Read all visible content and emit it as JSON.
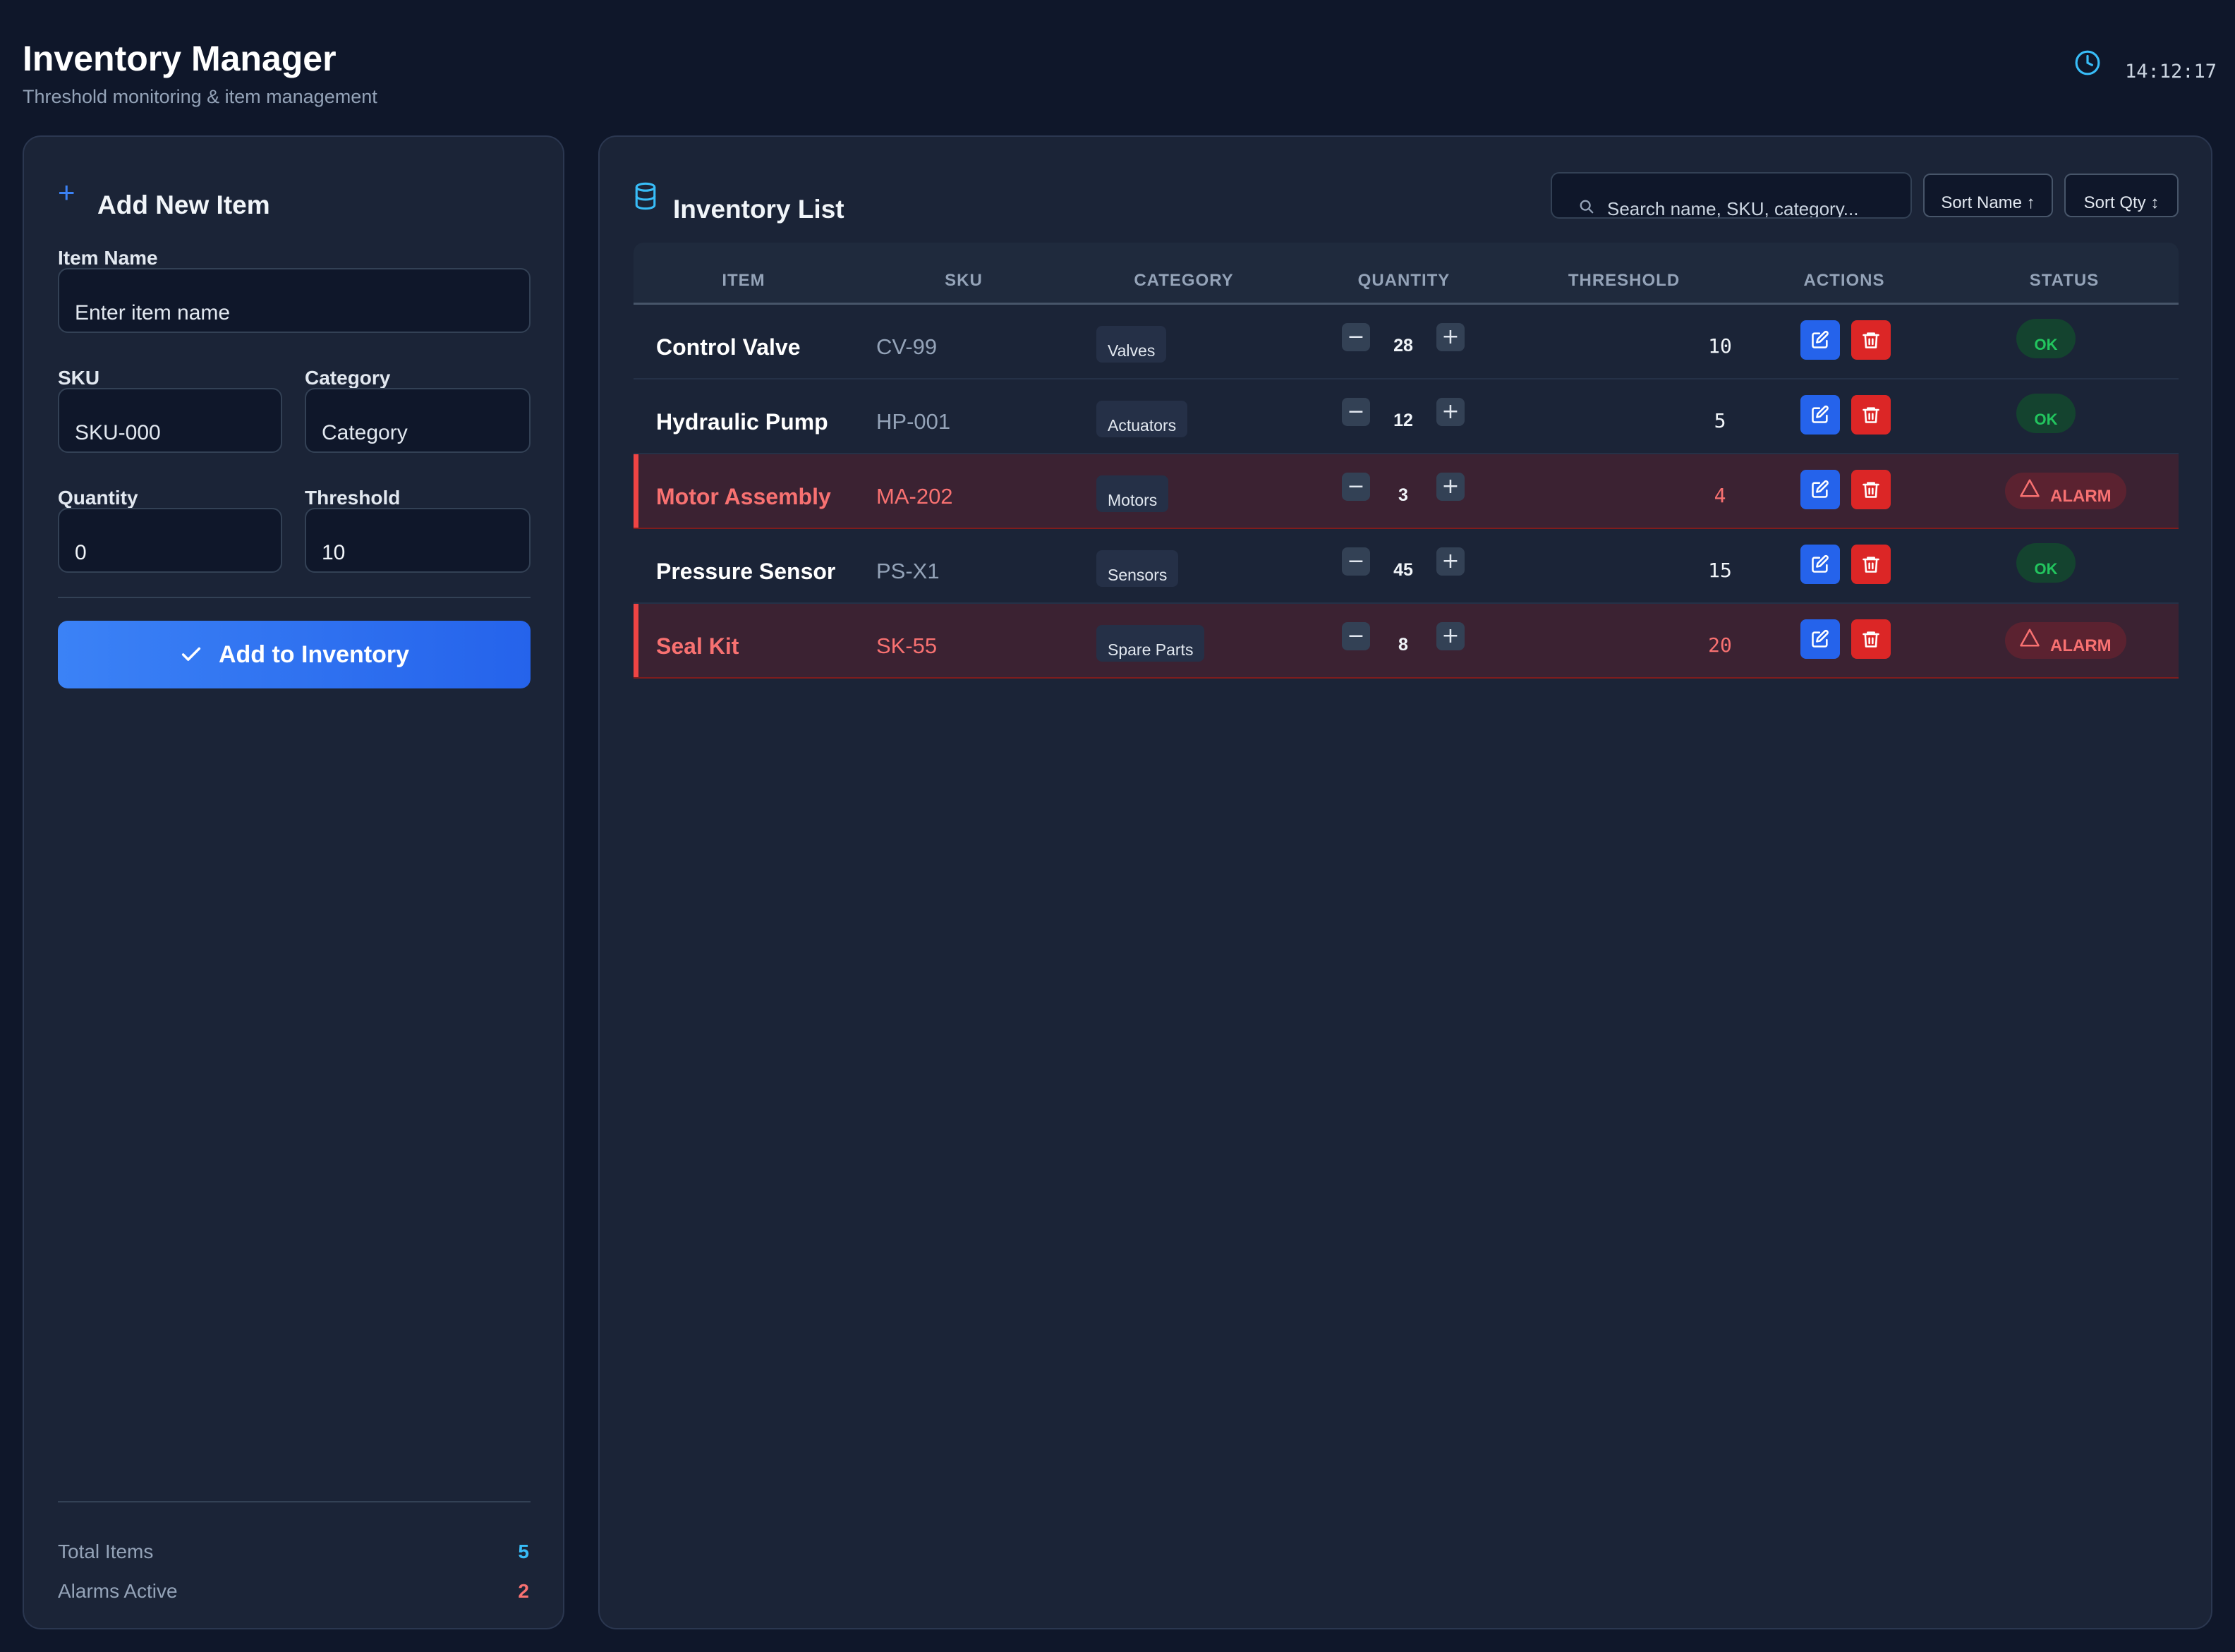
{
  "header": {
    "title": "Inventory Manager",
    "subtitle": "Threshold monitoring & item management",
    "clock": "14:12:17"
  },
  "add_form": {
    "title": "Add New Item",
    "item_name_label": "Item Name",
    "item_name_placeholder": "Enter item name",
    "sku_label": "SKU",
    "sku_placeholder": "SKU-000",
    "category_label": "Category",
    "category_placeholder": "Category",
    "quantity_label": "Quantity",
    "quantity_value": "0",
    "threshold_label": "Threshold",
    "threshold_value": "10",
    "submit_label": "Add to Inventory"
  },
  "stats": {
    "total_label": "Total Items",
    "total_value": "5",
    "alarms_label": "Alarms Active",
    "alarms_value": "2"
  },
  "inventory": {
    "title": "Inventory List",
    "search_placeholder": "Search name, SKU, category...",
    "sort_name_label": "Sort Name ↑",
    "sort_qty_label": "Sort Qty ↕",
    "columns": [
      "ITEM",
      "SKU",
      "CATEGORY",
      "QUANTITY",
      "THRESHOLD",
      "ACTIONS",
      "STATUS"
    ],
    "rows": [
      {
        "name": "Control Valve",
        "sku": "CV-99",
        "category": "Valves",
        "quantity": "28",
        "threshold": "10",
        "status": "OK",
        "alarm": false
      },
      {
        "name": "Hydraulic Pump",
        "sku": "HP-001",
        "category": "Actuators",
        "quantity": "12",
        "threshold": "5",
        "status": "OK",
        "alarm": false
      },
      {
        "name": "Motor Assembly",
        "sku": "MA-202",
        "category": "Motors",
        "quantity": "3",
        "threshold": "4",
        "status": "ALARM",
        "alarm": true
      },
      {
        "name": "Pressure Sensor",
        "sku": "PS-X1",
        "category": "Sensors",
        "quantity": "45",
        "threshold": "15",
        "status": "OK",
        "alarm": false
      },
      {
        "name": "Seal Kit",
        "sku": "SK-55",
        "category": "Spare Parts",
        "quantity": "8",
        "threshold": "20",
        "status": "ALARM",
        "alarm": true
      }
    ]
  },
  "colors": {
    "accent": "#3b82f6",
    "ok": "#22c55e",
    "alarm": "#ef4444",
    "total_value": "#38bdf8",
    "alarms_value": "#f87171"
  }
}
